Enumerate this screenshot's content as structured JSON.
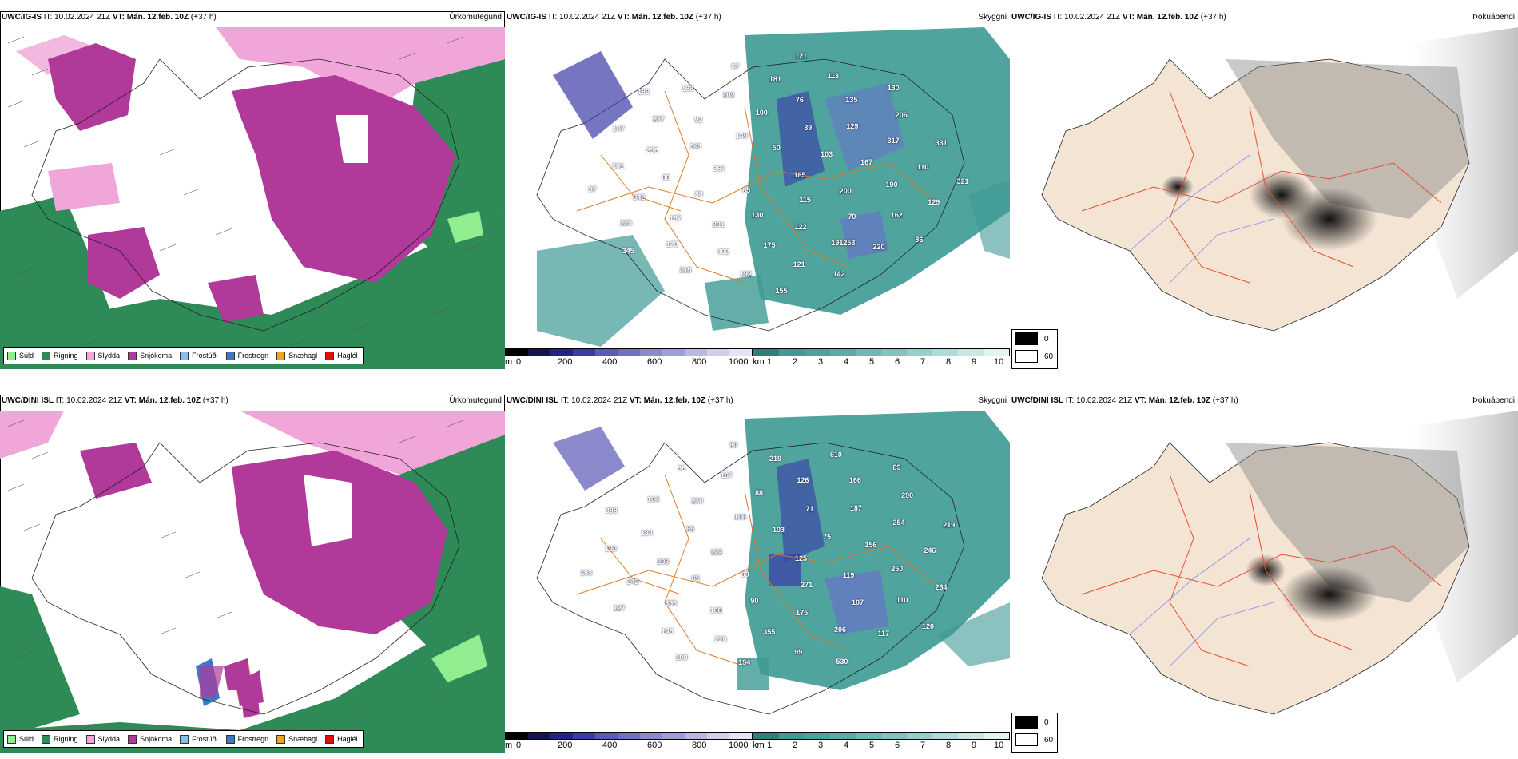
{
  "rows": [
    {
      "model": "UWC/IG-IS",
      "it_label": "IT:",
      "it_time": "10.02.2024 21Z",
      "vt_label": "VT:",
      "vt_time": "Mán. 12.feb. 10Z",
      "lead": "(+37 h)",
      "titles": [
        "Úrkomutegund",
        "Skyggni",
        "Þokuábendi"
      ],
      "labels": [
        "185",
        "65",
        "50",
        "115",
        "367",
        "103",
        "130",
        "149",
        "200",
        "80",
        "89",
        "122",
        "341",
        "167",
        "201",
        "100",
        "70",
        "88",
        "129",
        "175",
        "92",
        "190",
        "197",
        "76",
        "191253",
        "256",
        "317",
        "402",
        "102",
        "162",
        "342",
        "135",
        "121",
        "237",
        "110",
        "173",
        "181",
        "220",
        "301",
        "206",
        "192",
        "133",
        "129",
        "229",
        "113",
        "142",
        "147",
        "331",
        "215",
        "67",
        "86",
        "97",
        "130",
        "155",
        "189",
        "321",
        "345",
        "121"
      ]
    },
    {
      "model": "UWC/DINI ISL",
      "it_label": "IT:",
      "it_time": "10.02.2024 21Z",
      "vt_label": "VT:",
      "vt_time": "Mán. 12.feb. 10Z",
      "lead": "(+37 h)",
      "titles": [
        "Úrkomutegund",
        "Skyggni",
        "Þokuábendi"
      ],
      "labels": [
        "125",
        "69",
        "103",
        "271",
        "122",
        "75",
        "90",
        "106",
        "119",
        "65",
        "71",
        "175",
        "95",
        "156",
        "168",
        "88",
        "107",
        "208",
        "187",
        "355",
        "230",
        "250",
        "393",
        "126",
        "206",
        "184",
        "254",
        "226",
        "167",
        "110",
        "242",
        "166",
        "99",
        "164",
        "246",
        "146",
        "219",
        "117",
        "190",
        "290",
        "194",
        "96",
        "264",
        "127",
        "610",
        "530",
        "388",
        "219",
        "109",
        "80",
        "120",
        "193",
        "89"
      ]
    }
  ],
  "precip_legend": [
    {
      "label": "Súld",
      "color": "#90ee90"
    },
    {
      "label": "Rigning",
      "color": "#2e8b57"
    },
    {
      "label": "Slydda",
      "color": "#f0a6d8"
    },
    {
      "label": "Snjókoma",
      "color": "#b0399a"
    },
    {
      "label": "Frostúði",
      "color": "#87bdf0"
    },
    {
      "label": "Frostregn",
      "color": "#3a78c8"
    },
    {
      "label": "Snæhagl",
      "color": "#f5a31a"
    },
    {
      "label": "Haglél",
      "color": "#e01010"
    }
  ],
  "cloud_scale": {
    "unit": "m",
    "ticks": [
      "0",
      "200",
      "400",
      "600",
      "800",
      "1000"
    ]
  },
  "vis_scale": {
    "unit": "km",
    "ticks": [
      "1",
      "2",
      "3",
      "4",
      "5",
      "6",
      "7",
      "8",
      "9",
      "10"
    ]
  },
  "fog_legend": {
    "values": [
      "0",
      "60"
    ]
  },
  "colors": {
    "snow": "#b0399a",
    "sleet": "#f0a6d8",
    "rain": "#2e8b57",
    "drizzle": "#90ee90",
    "vis_teal": "#3d9a94",
    "cloud_blue": "#3a3aa8",
    "road_orange": "#e07a28",
    "land_beige": "#f3e4d4"
  }
}
